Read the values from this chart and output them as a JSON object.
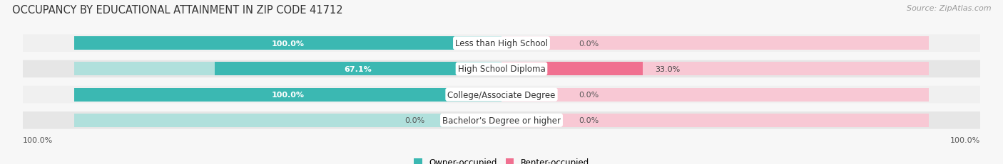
{
  "title": "OCCUPANCY BY EDUCATIONAL ATTAINMENT IN ZIP CODE 41712",
  "source": "Source: ZipAtlas.com",
  "categories": [
    "Less than High School",
    "High School Diploma",
    "College/Associate Degree",
    "Bachelor's Degree or higher"
  ],
  "owner_values": [
    100.0,
    67.1,
    100.0,
    0.0
  ],
  "renter_values": [
    0.0,
    33.0,
    0.0,
    0.0
  ],
  "owner_color": "#3bb8b2",
  "renter_color": "#f07090",
  "owner_light_color": "#b0e0dc",
  "renter_light_color": "#f8c8d4",
  "row_bg_even": "#f0f0f0",
  "row_bg_odd": "#e6e6e6",
  "title_fontsize": 10.5,
  "source_fontsize": 8,
  "label_fontsize": 8.5,
  "value_fontsize": 8,
  "legend_fontsize": 8.5,
  "axis_label_fontsize": 8,
  "left_axis_label": "100.0%",
  "right_axis_label": "100.0%",
  "figsize": [
    14.06,
    2.32
  ],
  "dpi": 100
}
